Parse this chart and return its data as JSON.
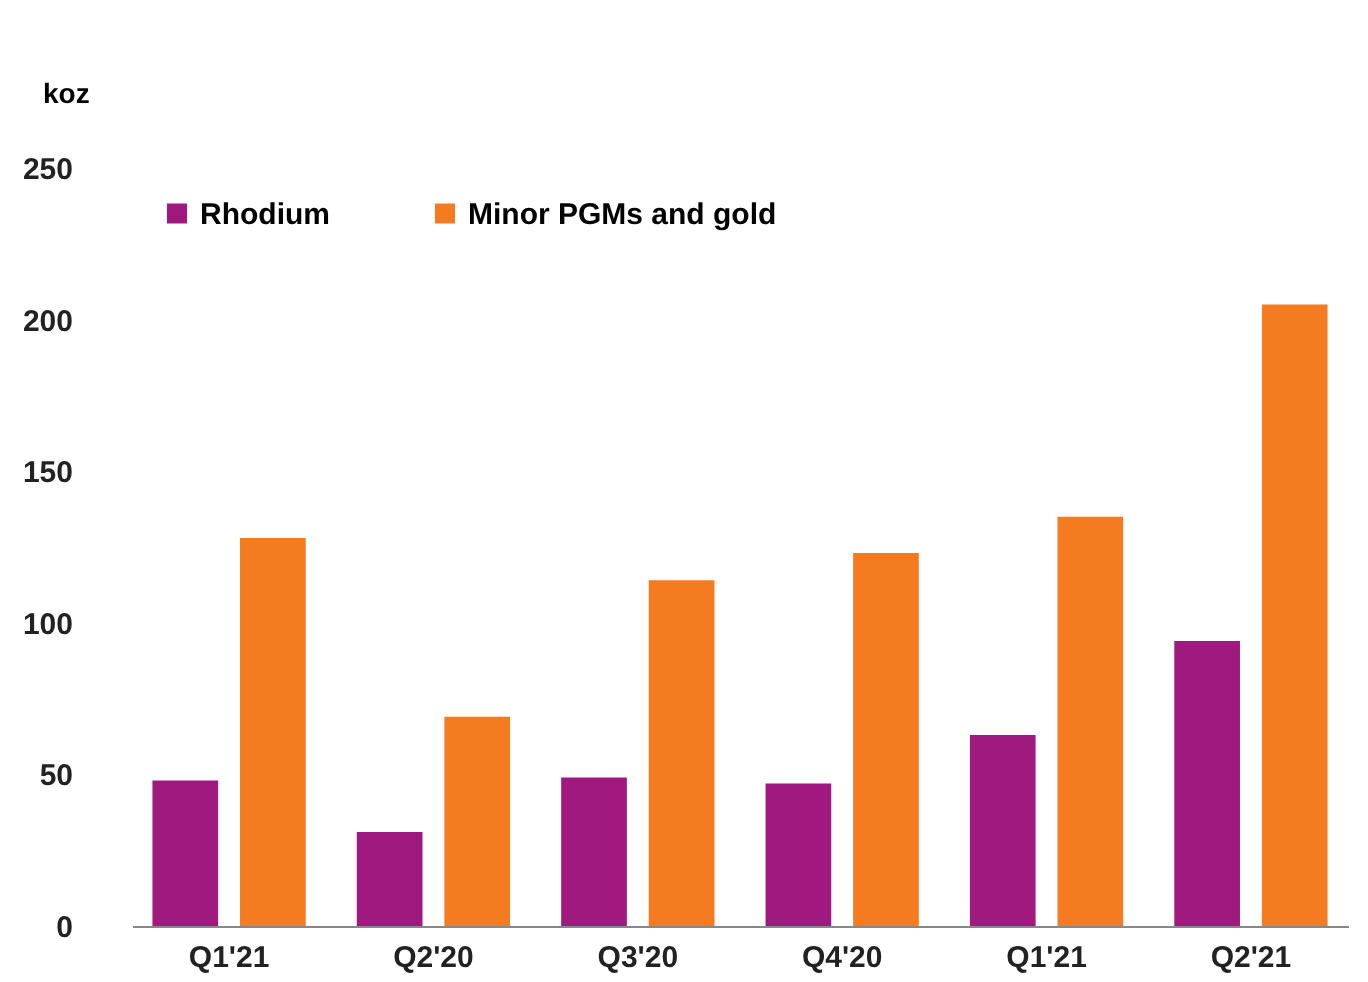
{
  "chart_data": {
    "type": "bar",
    "ylabel": "koz",
    "categories": [
      "Q1'21",
      "Q2'20",
      "Q3'20",
      "Q4'20",
      "Q1'21",
      "Q2'21"
    ],
    "series": [
      {
        "name": "Rhodium",
        "color": "#a0197f",
        "values": [
          48,
          31,
          49,
          47,
          63,
          94
        ]
      },
      {
        "name": "Minor PGMs and gold",
        "color": "#f47b20",
        "values": [
          128,
          69,
          114,
          123,
          135,
          205
        ]
      }
    ],
    "ylim": [
      0,
      250
    ],
    "yticks": [
      0,
      50,
      100,
      150,
      200,
      250
    ],
    "grid": false,
    "legend": "top left"
  }
}
